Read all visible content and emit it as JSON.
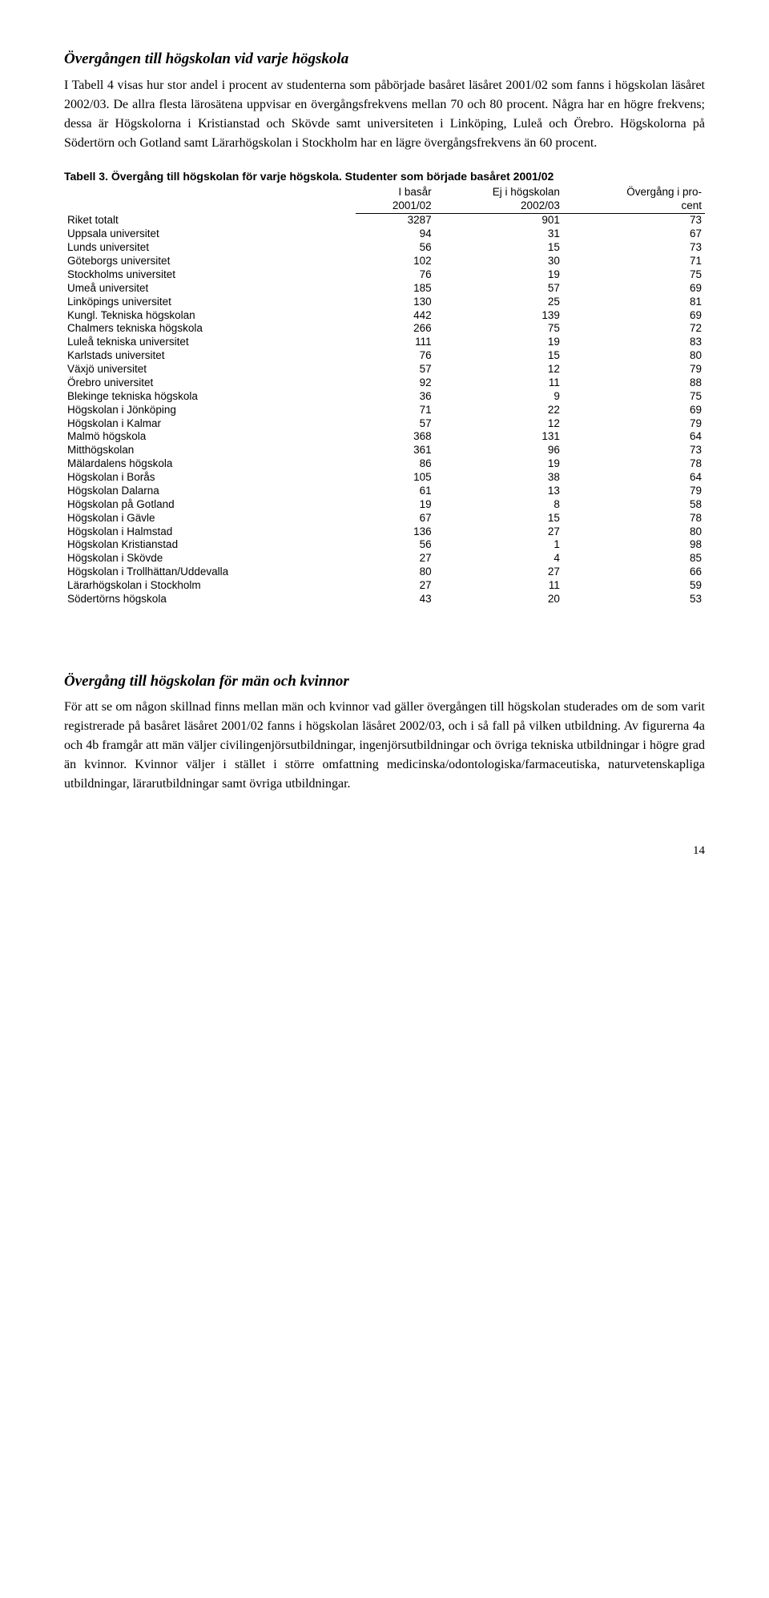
{
  "section1": {
    "heading": "Övergången till högskolan vid varje högskola",
    "para": "I Tabell 4 visas hur stor andel i procent av studenterna som påbörjade basåret läsåret 2001/02 som fanns i högskolan läsåret 2002/03. De allra flesta lärosätena uppvisar en övergångsfrekvens mellan 70 och 80 procent. Några har en högre frekvens; dessa är Högskolorna i Kristianstad och Skövde samt universiteten i Linköping, Luleå och Örebro. Högskolorna på Södertörn och Gotland samt Lärarhögskolan i Stockholm har en lägre övergångsfrekvens än 60 procent."
  },
  "table": {
    "caption": "Tabell 3. Övergång till högskolan för varje högskola. Studenter som började basåret 2001/02",
    "headers": {
      "col1_line1": "I basår",
      "col1_line2": "2001/02",
      "col2_line1": "Ej i högskolan",
      "col2_line2": "2002/03",
      "col3_line1": "Övergång i pro-",
      "col3_line2": "cent"
    },
    "rows": [
      {
        "label": "Riket totalt",
        "c1": "3287",
        "c2": "901",
        "c3": "73"
      },
      {
        "label": "Uppsala universitet",
        "c1": "94",
        "c2": "31",
        "c3": "67"
      },
      {
        "label": "Lunds universitet",
        "c1": "56",
        "c2": "15",
        "c3": "73"
      },
      {
        "label": "Göteborgs universitet",
        "c1": "102",
        "c2": "30",
        "c3": "71"
      },
      {
        "label": "Stockholms universitet",
        "c1": "76",
        "c2": "19",
        "c3": "75"
      },
      {
        "label": "Umeå universitet",
        "c1": "185",
        "c2": "57",
        "c3": "69"
      },
      {
        "label": "Linköpings universitet",
        "c1": "130",
        "c2": "25",
        "c3": "81"
      },
      {
        "label": "Kungl. Tekniska högskolan",
        "c1": "442",
        "c2": "139",
        "c3": "69"
      },
      {
        "label": "Chalmers tekniska högskola",
        "c1": "266",
        "c2": "75",
        "c3": "72"
      },
      {
        "label": "Luleå tekniska universitet",
        "c1": "111",
        "c2": "19",
        "c3": "83"
      },
      {
        "label": "Karlstads universitet",
        "c1": "76",
        "c2": "15",
        "c3": "80"
      },
      {
        "label": "Växjö universitet",
        "c1": "57",
        "c2": "12",
        "c3": "79"
      },
      {
        "label": "Örebro universitet",
        "c1": "92",
        "c2": "11",
        "c3": "88"
      },
      {
        "label": "Blekinge tekniska högskola",
        "c1": "36",
        "c2": "9",
        "c3": "75"
      },
      {
        "label": "Högskolan i Jönköping",
        "c1": "71",
        "c2": "22",
        "c3": "69"
      },
      {
        "label": "Högskolan i Kalmar",
        "c1": "57",
        "c2": "12",
        "c3": "79"
      },
      {
        "label": "Malmö högskola",
        "c1": "368",
        "c2": "131",
        "c3": "64"
      },
      {
        "label": "Mitthögskolan",
        "c1": "361",
        "c2": "96",
        "c3": "73"
      },
      {
        "label": "Mälardalens högskola",
        "c1": "86",
        "c2": "19",
        "c3": "78"
      },
      {
        "label": "Högskolan i Borås",
        "c1": "105",
        "c2": "38",
        "c3": "64"
      },
      {
        "label": "Högskolan Dalarna",
        "c1": "61",
        "c2": "13",
        "c3": "79"
      },
      {
        "label": "Högskolan på Gotland",
        "c1": "19",
        "c2": "8",
        "c3": "58"
      },
      {
        "label": "Högskolan i Gävle",
        "c1": "67",
        "c2": "15",
        "c3": "78"
      },
      {
        "label": "Högskolan i Halmstad",
        "c1": "136",
        "c2": "27",
        "c3": "80"
      },
      {
        "label": "Högskolan Kristianstad",
        "c1": "56",
        "c2": "1",
        "c3": "98"
      },
      {
        "label": "Högskolan i Skövde",
        "c1": "27",
        "c2": "4",
        "c3": "85"
      },
      {
        "label": "Högskolan i Trollhättan/Uddevalla",
        "c1": "80",
        "c2": "27",
        "c3": "66"
      },
      {
        "label": "Lärarhögskolan i Stockholm",
        "c1": "27",
        "c2": "11",
        "c3": "59"
      },
      {
        "label": "Södertörns högskola",
        "c1": "43",
        "c2": "20",
        "c3": "53"
      }
    ]
  },
  "section2": {
    "heading": "Övergång till högskolan för män och kvinnor",
    "para": "För att se om någon skillnad finns mellan män och kvinnor vad gäller övergången till högskolan studerades om de som varit registrerade på basåret läsåret 2001/02 fanns i högskolan läsåret 2002/03, och i så fall på vilken utbildning. Av figurerna 4a och 4b framgår att män väljer civilingenjörsutbildningar, ingenjörsutbildningar och övriga tekniska utbildningar i högre grad än kvinnor. Kvinnor väljer i stället i större omfattning medicinska/odontologiska/farmaceutiska, naturvetenskapliga utbildningar, lärarutbildningar samt övriga utbildningar."
  },
  "pageNumber": "14"
}
